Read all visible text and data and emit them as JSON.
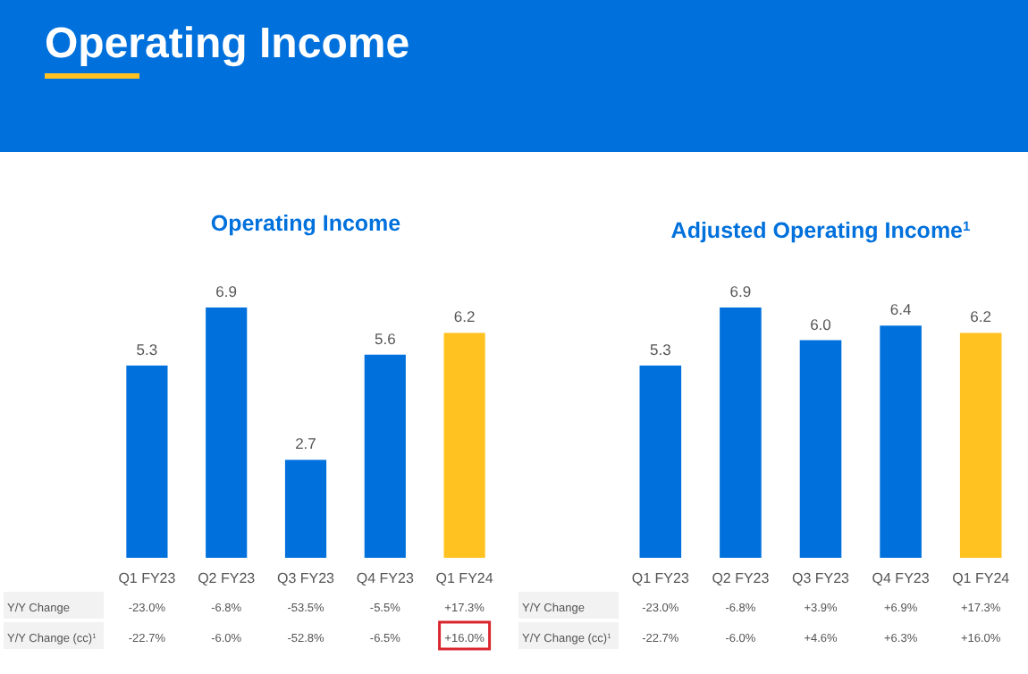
{
  "chart_data": [
    {
      "type": "other",
      "title": "Operating Income"
    },
    {
      "type": "bar",
      "title": "Operating Income",
      "categories": [
        "Q1 FY23",
        "Q2 FY23",
        "Q3 FY23",
        "Q4 FY23",
        "Q1 FY24"
      ],
      "values": [
        5.3,
        6.9,
        2.7,
        5.6,
        6.2
      ],
      "colors": [
        "#0071dc",
        "#0071dc",
        "#0071dc",
        "#0071dc",
        "#ffc220"
      ],
      "data_labels": true,
      "annotations": [
        "Y/Y Change",
        "-23.0%",
        "-6.8%",
        "-53.5%",
        "-5.5%",
        "+17.3%",
        "Y/Y Change (cc)$^{1}$",
        "-22.7%",
        "-6.0%",
        "-52.8%",
        "-6.5%",
        "+16.0%"
      ]
    },
    {
      "type": "bar",
      "title": "Adjusted Operating Income$^{1}$",
      "categories": [
        "Q1 FY23",
        "Q2 FY23",
        "Q3 FY23",
        "Q4 FY23",
        "Q1 FY24"
      ],
      "values": [
        5.3,
        6.9,
        6.0,
        6.4,
        6.2
      ],
      "colors": [
        "#0071dc",
        "#0071dc",
        "#0071dc",
        "#0071dc",
        "#ffc220"
      ],
      "value_labels": [
        "5.3",
        "6.9",
        "6.0",
        "6.4",
        "6.2"
      ],
      "annotations": [
        "Y/Y Change",
        "-23.0%",
        "-6.8%",
        "+3.9%",
        "+6.9%",
        "+17.3%",
        "Y/Y Change (cc)$^{1}$",
        "-22.7%",
        "-6.0%",
        "+4.6%",
        "+6.3%",
        "+16.0%"
      ]
    }
  ]
}
